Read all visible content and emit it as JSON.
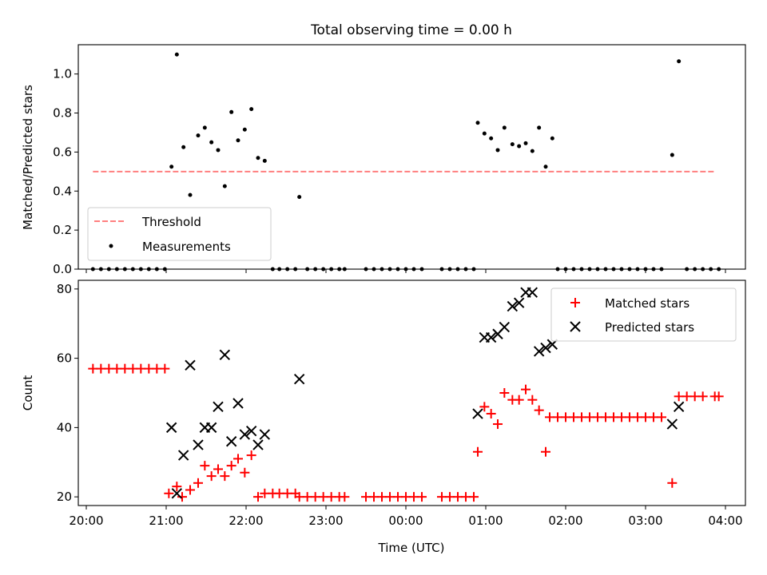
{
  "chart_data": [
    {
      "type": "scatter",
      "title": "Total observing time = 0.00 h",
      "xlabel": "",
      "ylabel": "Matched/Predicted stars",
      "xlim": [
        "19:54",
        "04:15"
      ],
      "ylim": [
        0,
        1.15
      ],
      "yticks": [
        0.0,
        0.2,
        0.4,
        0.6,
        0.8,
        1.0
      ],
      "ytick_labels": [
        "0.0",
        "0.2",
        "0.4",
        "0.6",
        "0.8",
        "1.0"
      ],
      "legend_placement": "lower-left",
      "threshold": {
        "name": "Threshold",
        "value": 0.5,
        "x_range": [
          "20:05",
          "03:53"
        ],
        "color": "#ff7f7f"
      },
      "series": [
        {
          "name": "Measurements",
          "color": "#000000",
          "points": [
            [
              "20:05",
              0
            ],
            [
              "20:11",
              0
            ],
            [
              "20:17",
              0
            ],
            [
              "20:23",
              0
            ],
            [
              "20:29",
              0
            ],
            [
              "20:35",
              0
            ],
            [
              "20:41",
              0
            ],
            [
              "20:47",
              0
            ],
            [
              "20:53",
              0
            ],
            [
              "20:59",
              0
            ],
            [
              "21:04",
              0.525
            ],
            [
              "21:08",
              1.1
            ],
            [
              "21:13",
              0.625
            ],
            [
              "21:18",
              0.38
            ],
            [
              "21:24",
              0.685
            ],
            [
              "21:29",
              0.725
            ],
            [
              "21:34",
              0.65
            ],
            [
              "21:39",
              0.61
            ],
            [
              "21:44",
              0.425
            ],
            [
              "21:49",
              0.805
            ],
            [
              "21:54",
              0.66
            ],
            [
              "21:59",
              0.715
            ],
            [
              "22:04",
              0.82
            ],
            [
              "22:09",
              0.57
            ],
            [
              "22:14",
              0.555
            ],
            [
              "22:20",
              0
            ],
            [
              "22:25",
              0
            ],
            [
              "22:31",
              0
            ],
            [
              "22:37",
              0
            ],
            [
              "22:40",
              0.37
            ],
            [
              "22:46",
              0
            ],
            [
              "22:52",
              0
            ],
            [
              "22:58",
              0
            ],
            [
              "23:04",
              0
            ],
            [
              "23:10",
              0
            ],
            [
              "23:14",
              0
            ],
            [
              "23:30",
              0
            ],
            [
              "23:36",
              0
            ],
            [
              "23:42",
              0
            ],
            [
              "23:48",
              0
            ],
            [
              "23:54",
              0
            ],
            [
              "00:00",
              0
            ],
            [
              "00:06",
              0
            ],
            [
              "00:12",
              0
            ],
            [
              "00:27",
              0
            ],
            [
              "00:33",
              0
            ],
            [
              "00:39",
              0
            ],
            [
              "00:45",
              0
            ],
            [
              "00:51",
              0
            ],
            [
              "00:54",
              0.75
            ],
            [
              "00:59",
              0.695
            ],
            [
              "01:04",
              0.67
            ],
            [
              "01:09",
              0.61
            ],
            [
              "01:14",
              0.725
            ],
            [
              "01:20",
              0.64
            ],
            [
              "01:25",
              0.63
            ],
            [
              "01:30",
              0.645
            ],
            [
              "01:35",
              0.605
            ],
            [
              "01:40",
              0.725
            ],
            [
              "01:45",
              0.525
            ],
            [
              "01:50",
              0.67
            ],
            [
              "01:54",
              0
            ],
            [
              "02:00",
              0
            ],
            [
              "02:06",
              0
            ],
            [
              "02:12",
              0
            ],
            [
              "02:18",
              0
            ],
            [
              "02:24",
              0
            ],
            [
              "02:30",
              0
            ],
            [
              "02:36",
              0
            ],
            [
              "02:42",
              0
            ],
            [
              "02:48",
              0
            ],
            [
              "02:54",
              0
            ],
            [
              "03:00",
              0
            ],
            [
              "03:06",
              0
            ],
            [
              "03:12",
              0
            ],
            [
              "03:20",
              0.585
            ],
            [
              "03:25",
              1.065
            ],
            [
              "03:31",
              0
            ],
            [
              "03:37",
              0
            ],
            [
              "03:43",
              0
            ],
            [
              "03:49",
              0
            ],
            [
              "03:55",
              0
            ]
          ]
        }
      ]
    },
    {
      "type": "scatter",
      "title": "",
      "xlabel": "Time (UTC)",
      "ylabel": "Count",
      "xlim": [
        "19:54",
        "04:15"
      ],
      "ylim": [
        17.5,
        82.5
      ],
      "xticks": [
        "20:00",
        "21:00",
        "22:00",
        "23:00",
        "00:00",
        "01:00",
        "02:00",
        "03:00",
        "04:00"
      ],
      "yticks": [
        20,
        40,
        60,
        80
      ],
      "ytick_labels": [
        "20",
        "40",
        "60",
        "80"
      ],
      "legend_placement": "upper-right",
      "series": [
        {
          "name": "Matched stars",
          "marker": "plus",
          "color": "#ff0000",
          "points": [
            [
              "20:05",
              57
            ],
            [
              "20:11",
              57
            ],
            [
              "20:17",
              57
            ],
            [
              "20:23",
              57
            ],
            [
              "20:29",
              57
            ],
            [
              "20:35",
              57
            ],
            [
              "20:41",
              57
            ],
            [
              "20:47",
              57
            ],
            [
              "20:53",
              57
            ],
            [
              "20:59",
              57
            ],
            [
              "21:02",
              21
            ],
            [
              "21:08",
              23
            ],
            [
              "21:12",
              20
            ],
            [
              "21:18",
              22
            ],
            [
              "21:24",
              24
            ],
            [
              "21:29",
              29
            ],
            [
              "21:34",
              26
            ],
            [
              "21:39",
              28
            ],
            [
              "21:44",
              26
            ],
            [
              "21:49",
              29
            ],
            [
              "21:54",
              31
            ],
            [
              "21:59",
              27
            ],
            [
              "22:04",
              32
            ],
            [
              "22:09",
              20
            ],
            [
              "22:14",
              21
            ],
            [
              "22:20",
              21
            ],
            [
              "22:25",
              21
            ],
            [
              "22:31",
              21
            ],
            [
              "22:37",
              21
            ],
            [
              "22:40",
              20
            ],
            [
              "22:46",
              20
            ],
            [
              "22:52",
              20
            ],
            [
              "22:58",
              20
            ],
            [
              "23:04",
              20
            ],
            [
              "23:10",
              20
            ],
            [
              "23:14",
              20
            ],
            [
              "23:30",
              20
            ],
            [
              "23:36",
              20
            ],
            [
              "23:42",
              20
            ],
            [
              "23:48",
              20
            ],
            [
              "23:54",
              20
            ],
            [
              "00:00",
              20
            ],
            [
              "00:06",
              20
            ],
            [
              "00:12",
              20
            ],
            [
              "00:27",
              20
            ],
            [
              "00:33",
              20
            ],
            [
              "00:39",
              20
            ],
            [
              "00:45",
              20
            ],
            [
              "00:51",
              20
            ],
            [
              "00:54",
              33
            ],
            [
              "00:59",
              46
            ],
            [
              "01:04",
              44
            ],
            [
              "01:09",
              41
            ],
            [
              "01:14",
              50
            ],
            [
              "01:20",
              48
            ],
            [
              "01:25",
              48
            ],
            [
              "01:30",
              51
            ],
            [
              "01:35",
              48
            ],
            [
              "01:40",
              45
            ],
            [
              "01:45",
              33
            ],
            [
              "01:48",
              43
            ],
            [
              "01:54",
              43
            ],
            [
              "02:00",
              43
            ],
            [
              "02:06",
              43
            ],
            [
              "02:12",
              43
            ],
            [
              "02:18",
              43
            ],
            [
              "02:24",
              43
            ],
            [
              "02:30",
              43
            ],
            [
              "02:36",
              43
            ],
            [
              "02:42",
              43
            ],
            [
              "02:48",
              43
            ],
            [
              "02:54",
              43
            ],
            [
              "03:00",
              43
            ],
            [
              "03:06",
              43
            ],
            [
              "03:12",
              43
            ],
            [
              "03:20",
              24
            ],
            [
              "03:25",
              49
            ],
            [
              "03:31",
              49
            ],
            [
              "03:37",
              49
            ],
            [
              "03:43",
              49
            ],
            [
              "03:52",
              49
            ],
            [
              "03:55",
              49
            ]
          ]
        },
        {
          "name": "Predicted stars",
          "marker": "x",
          "color": "#000000",
          "points": [
            [
              "21:04",
              40
            ],
            [
              "21:08",
              21
            ],
            [
              "21:13",
              32
            ],
            [
              "21:18",
              58
            ],
            [
              "21:24",
              35
            ],
            [
              "21:29",
              40
            ],
            [
              "21:34",
              40
            ],
            [
              "21:39",
              46
            ],
            [
              "21:44",
              61
            ],
            [
              "21:49",
              36
            ],
            [
              "21:54",
              47
            ],
            [
              "21:59",
              38
            ],
            [
              "22:04",
              39
            ],
            [
              "22:09",
              35
            ],
            [
              "22:14",
              38
            ],
            [
              "22:40",
              54
            ],
            [
              "00:54",
              44
            ],
            [
              "00:59",
              66
            ],
            [
              "01:04",
              66
            ],
            [
              "01:09",
              67
            ],
            [
              "01:14",
              69
            ],
            [
              "01:20",
              75
            ],
            [
              "01:25",
              76
            ],
            [
              "01:30",
              79
            ],
            [
              "01:35",
              79
            ],
            [
              "01:40",
              62
            ],
            [
              "01:45",
              63
            ],
            [
              "01:50",
              64
            ],
            [
              "03:20",
              41
            ],
            [
              "03:25",
              46
            ]
          ]
        }
      ]
    }
  ]
}
